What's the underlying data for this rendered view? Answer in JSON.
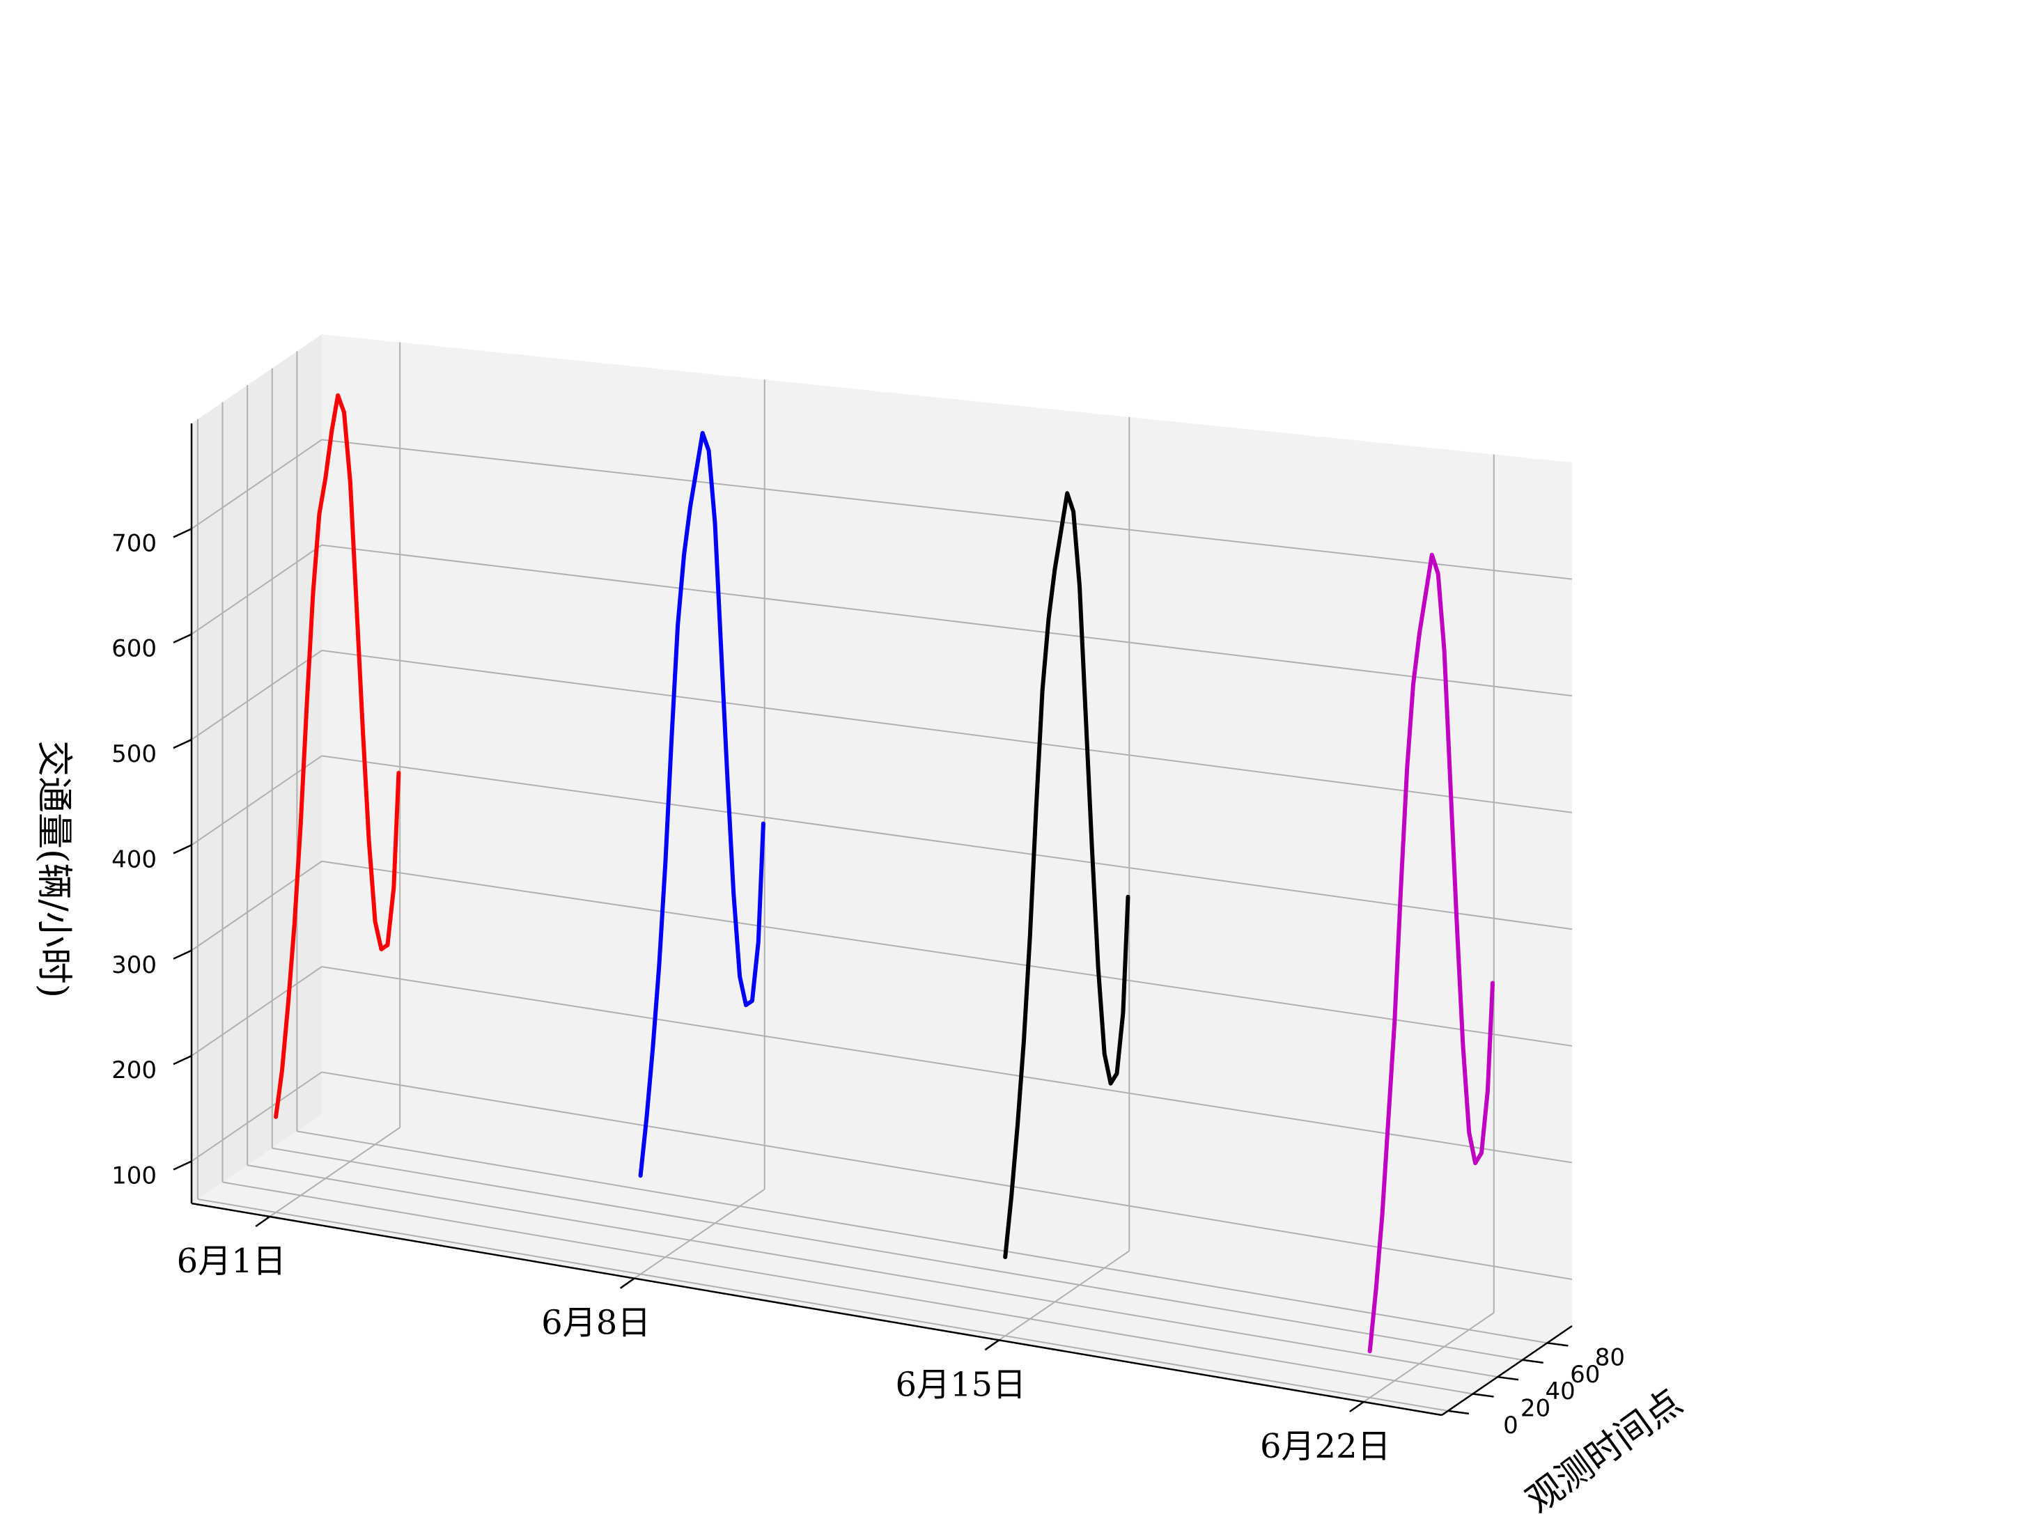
{
  "chart_data": {
    "type": "line",
    "projection": "3d",
    "title": "",
    "xlabel": "",
    "ylabel": "观测时间点",
    "zlabel": "交通量(辆/小时)",
    "x_categories": [
      "6月1日",
      "6月8日",
      "6月15日",
      "6月22日"
    ],
    "x_ticks": [
      0,
      7,
      14,
      21
    ],
    "y_ticks": [
      0,
      20,
      40,
      60,
      80
    ],
    "z_ticks": [
      100,
      200,
      300,
      400,
      500,
      600,
      700
    ],
    "ylim": [
      -5,
      100
    ],
    "zlim": [
      60,
      800
    ],
    "grid": true,
    "series": [
      {
        "x": 0,
        "color": "#ff0000",
        "t": [
          0,
          5,
          10,
          15,
          20,
          25,
          30,
          35,
          40,
          45,
          50,
          55,
          60,
          65,
          70,
          75,
          80,
          85,
          90,
          95,
          99
        ],
        "values": [
          150,
          190,
          250,
          320,
          410,
          520,
          620,
          690,
          720,
          760,
          790,
          770,
          700,
          580,
          460,
          350,
          270,
          240,
          240,
          290,
          395
        ]
      },
      {
        "x": 7,
        "color": "#0000ff",
        "t": [
          0,
          5,
          10,
          15,
          20,
          25,
          30,
          35,
          40,
          45,
          50,
          55,
          60,
          65,
          70,
          75,
          80,
          85,
          90,
          95,
          99
        ],
        "values": [
          150,
          200,
          260,
          330,
          420,
          530,
          630,
          690,
          730,
          760,
          790,
          770,
          700,
          580,
          460,
          350,
          270,
          240,
          240,
          290,
          395
        ]
      },
      {
        "x": 14,
        "color": "#000000",
        "t": [
          0,
          5,
          10,
          15,
          20,
          25,
          30,
          35,
          40,
          45,
          50,
          55,
          60,
          65,
          70,
          75,
          80,
          85,
          90,
          95,
          99
        ],
        "values": [
          130,
          180,
          240,
          310,
          400,
          510,
          610,
          670,
          710,
          740,
          770,
          750,
          680,
          560,
          440,
          330,
          250,
          220,
          225,
          275,
          375
        ]
      },
      {
        "x": 21,
        "color": "#c000c0",
        "t": [
          0,
          5,
          10,
          15,
          20,
          25,
          30,
          35,
          40,
          45,
          50,
          55,
          60,
          65,
          70,
          75,
          80,
          85,
          90,
          95,
          99
        ],
        "values": [
          100,
          150,
          210,
          290,
          370,
          480,
          580,
          650,
          690,
          720,
          750,
          730,
          660,
          540,
          420,
          310,
          230,
          200,
          205,
          255,
          345
        ]
      }
    ]
  }
}
